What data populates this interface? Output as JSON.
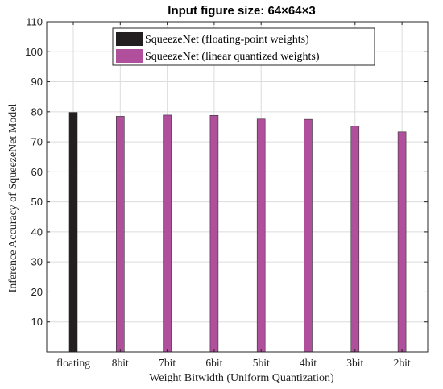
{
  "chart_data": {
    "type": "bar",
    "title": "Input figure size: 64×64×3",
    "xlabel": "Weight Bitwidth (Uniform Quantization)",
    "ylabel": "Inference Accuracy of SqueezeNet Model",
    "categories": [
      "floating",
      "8bit",
      "7bit",
      "6bit",
      "5bit",
      "4bit",
      "3bit",
      "2bit"
    ],
    "ylim": [
      0,
      110
    ],
    "yticks": [
      10,
      20,
      30,
      40,
      50,
      60,
      70,
      80,
      90,
      100,
      110
    ],
    "grid": true,
    "legend_position": "top-center",
    "series": [
      {
        "name": "SqueezeNet (floating-point weights)",
        "color": "#231f20",
        "values": [
          79.8,
          0,
          0,
          0,
          0,
          0,
          0,
          0
        ]
      },
      {
        "name": "SqueezeNet (linear quantized weights)",
        "color": "#b04f9c",
        "values": [
          0,
          78.5,
          78.9,
          78.8,
          77.6,
          77.5,
          75.2,
          73.3
        ]
      }
    ]
  }
}
